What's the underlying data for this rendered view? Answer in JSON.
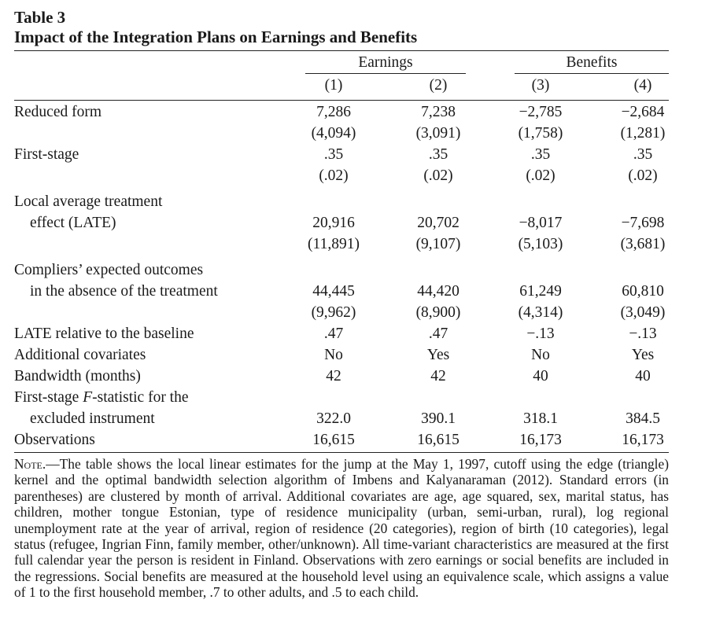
{
  "table": {
    "number": "Table 3",
    "title": "Impact of the Integration Plans on Earnings and Benefits",
    "group_headers": [
      "Earnings",
      "Benefits"
    ],
    "column_numbers": [
      "(1)",
      "(2)",
      "(3)",
      "(4)"
    ],
    "rows": [
      {
        "label": "Reduced form",
        "values": [
          "7,286",
          "7,238",
          "−2,785",
          "−2,684"
        ]
      },
      {
        "label": "",
        "values": [
          "(4,094)",
          "(3,091)",
          "(1,758)",
          "(1,281)"
        ]
      },
      {
        "label": "First-stage",
        "values": [
          ".35",
          ".35",
          ".35",
          ".35"
        ]
      },
      {
        "label": "",
        "values": [
          "(.02)",
          "(.02)",
          "(.02)",
          "(.02)"
        ]
      },
      {
        "label": "Local average treatment",
        "values": [
          "",
          "",
          "",
          ""
        ]
      },
      {
        "label": "effect (LATE)",
        "values": [
          "20,916",
          "20,702",
          "−8,017",
          "−7,698"
        ]
      },
      {
        "label": "",
        "values": [
          "(11,891)",
          "(9,107)",
          "(5,103)",
          "(3,681)"
        ]
      },
      {
        "label": "Compliers’ expected outcomes",
        "values": [
          "",
          "",
          "",
          ""
        ]
      },
      {
        "label": "in the absence of the treatment",
        "values": [
          "44,445",
          "44,420",
          "61,249",
          "60,810"
        ]
      },
      {
        "label": "",
        "values": [
          "(9,962)",
          "(8,900)",
          "(4,314)",
          "(3,049)"
        ]
      },
      {
        "label": "LATE relative to the baseline",
        "values": [
          ".47",
          ".47",
          "−.13",
          "−.13"
        ]
      },
      {
        "label": "Additional covariates",
        "values": [
          "No",
          "Yes",
          "No",
          "Yes"
        ]
      },
      {
        "label": "Bandwidth (months)",
        "values": [
          "42",
          "42",
          "40",
          "40"
        ]
      },
      {
        "label": "First-stage F-statistic for the",
        "values": [
          "",
          "",
          "",
          ""
        ]
      },
      {
        "label": "excluded instrument",
        "values": [
          "322.0",
          "390.1",
          "318.1",
          "384.5"
        ]
      },
      {
        "label": "Observations",
        "values": [
          "16,615",
          "16,615",
          "16,173",
          "16,173"
        ]
      }
    ],
    "note_label": "Note.",
    "note_text": "—The table shows the local linear estimates for the jump at the May 1, 1997, cutoff using the edge (triangle) kernel and the optimal bandwidth selection algorithm of Imbens and Kalyanaraman (2012). Standard errors (in parentheses) are clustered by month of arrival. Additional covariates are age, age squared, sex, marital status, has children, mother tongue Estonian, type of residence municipality (urban, semi-urban, rural), log regional unemployment rate at the year of arrival, region of residence (20 categories), region of birth (10 categories), legal status (refugee, Ingrian Finn, family member, other/unknown). All time-variant characteristics are measured at the first full calendar year the person is resident in Finland. Observations with zero earnings or social benefits are included in the regressions. Social benefits are measured at the household level using an equivalence scale, which assigns a value of 1 to the first household member, .7 to other adults, and .5 to each child."
  }
}
